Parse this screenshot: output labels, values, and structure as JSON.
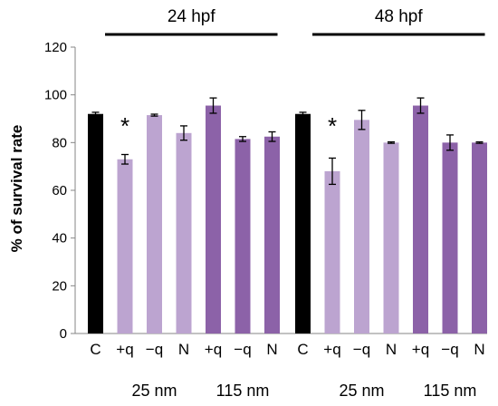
{
  "chart_data": {
    "type": "bar",
    "ylabel": "% of survival rate",
    "ylim": [
      0,
      120
    ],
    "yticks": [
      "0",
      "20",
      "40",
      "60",
      "80",
      "100",
      "120"
    ],
    "panels": [
      {
        "label": "24 hpf",
        "categories": [
          "C",
          "+q",
          "−q",
          "N",
          "+q",
          "−q",
          "N"
        ],
        "values": [
          92,
          73,
          91.5,
          84,
          95.5,
          81.5,
          82.5
        ],
        "errors": [
          0.7,
          2,
          0.4,
          3,
          3.2,
          1,
          2
        ],
        "significant": [
          false,
          true,
          false,
          false,
          false,
          false,
          false
        ],
        "colors": [
          "#000000",
          "#bca4d0",
          "#bca4d0",
          "#bca4d0",
          "#8c62a8",
          "#8c62a8",
          "#8c62a8"
        ]
      },
      {
        "label": "48 hpf",
        "categories": [
          "C",
          "+q",
          "−q",
          "N",
          "+q",
          "−q",
          "N"
        ],
        "values": [
          92,
          68,
          89.5,
          80,
          95.5,
          80,
          80
        ],
        "errors": [
          0.7,
          5.5,
          4,
          0.3,
          3.2,
          3.2,
          0.3
        ],
        "significant": [
          false,
          true,
          false,
          false,
          false,
          false,
          false
        ],
        "colors": [
          "#000000",
          "#bca4d0",
          "#bca4d0",
          "#bca4d0",
          "#8c62a8",
          "#8c62a8",
          "#8c62a8"
        ]
      }
    ],
    "size_groups": [
      "25 nm",
      "115 nm",
      "25 nm",
      "115 nm"
    ],
    "significance_marker": "*",
    "grid": false,
    "legend": "none"
  }
}
